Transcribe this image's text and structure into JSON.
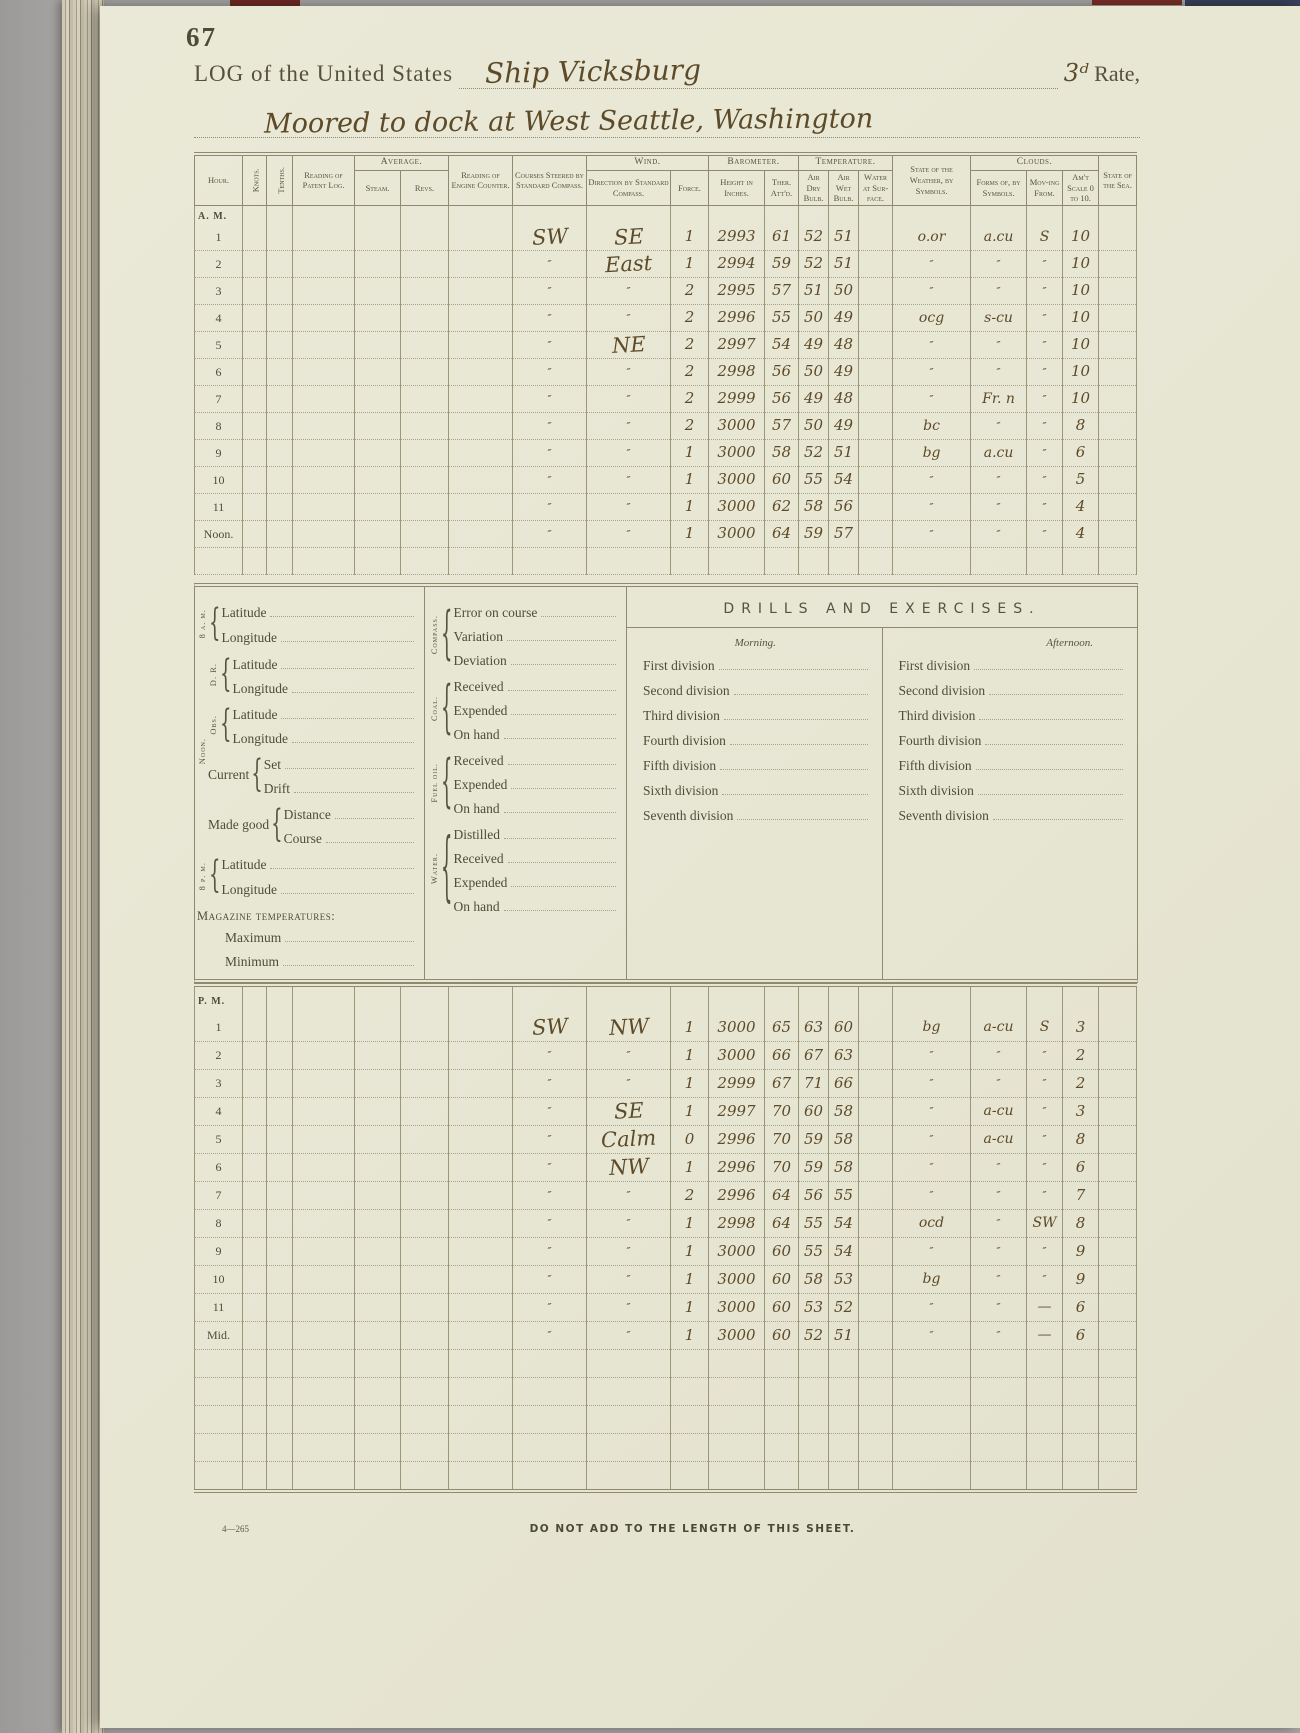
{
  "page": {
    "number": "67",
    "title_printed": "LOG of the United States",
    "ship_name": "Ship Vicksburg",
    "rate_hw": "3ᵈ",
    "rate_printed": " Rate,",
    "location_line": "Moored to dock at West Seattle, Washington",
    "footer_left": "4—265",
    "footer_center": "DO NOT ADD TO THE LENGTH OF THIS SHEET."
  },
  "headers": {
    "hour": "Hour.",
    "knots": "Knots.",
    "tenths": "Tenths.",
    "patent": "Reading of Patent Log.",
    "average": "Average.",
    "steam": "Steam.",
    "revs": "Revs.",
    "counter": "Reading of Engine Counter.",
    "courses": "Courses Steered by Standard Compass.",
    "wind": "Wind.",
    "direction": "Direction by Standard Compass.",
    "force": "Force.",
    "barometer": "Barometer.",
    "height": "Height in Inches.",
    "ther": "Ther. Att'd.",
    "temperature": "Temperature.",
    "dry": "Air Dry Bulb.",
    "wet": "Air Wet Bulb.",
    "water": "Water at Sur-face.",
    "weather": "State of the Weather, by Symbols.",
    "clouds": "Clouds.",
    "forms": "Forms of, by Symbols.",
    "moving": "Mov-ing From.",
    "amount": "Am't Scale 0 to 10.",
    "sea": "State of the Sea."
  },
  "table_labels": {
    "am": "A. M.",
    "pm": "P. M."
  },
  "am_rows": [
    {
      "hour": "1",
      "course": "SW",
      "dir": "SE",
      "force": "1",
      "bar": "2993",
      "ther": "61",
      "dry": "52",
      "wet": "51",
      "weather": "o.or",
      "forms": "a.cu",
      "from": "S",
      "amt": "10"
    },
    {
      "hour": "2",
      "course": "″",
      "dir": "East",
      "force": "1",
      "bar": "2994",
      "ther": "59",
      "dry": "52",
      "wet": "51",
      "weather": "″",
      "forms": "″",
      "from": "″",
      "amt": "10"
    },
    {
      "hour": "3",
      "course": "″",
      "dir": "″",
      "force": "2",
      "bar": "2995",
      "ther": "57",
      "dry": "51",
      "wet": "50",
      "weather": "″",
      "forms": "″",
      "from": "″",
      "amt": "10"
    },
    {
      "hour": "4",
      "course": "″",
      "dir": "″",
      "force": "2",
      "bar": "2996",
      "ther": "55",
      "dry": "50",
      "wet": "49",
      "weather": "ocg",
      "forms": "s-cu",
      "from": "″",
      "amt": "10"
    },
    {
      "hour": "5",
      "course": "″",
      "dir": "NE",
      "force": "2",
      "bar": "2997",
      "ther": "54",
      "dry": "49",
      "wet": "48",
      "weather": "″",
      "forms": "″",
      "from": "″",
      "amt": "10"
    },
    {
      "hour": "6",
      "course": "″",
      "dir": "″",
      "force": "2",
      "bar": "2998",
      "ther": "56",
      "dry": "50",
      "wet": "49",
      "weather": "″",
      "forms": "″",
      "from": "″",
      "amt": "10"
    },
    {
      "hour": "7",
      "course": "″",
      "dir": "″",
      "force": "2",
      "bar": "2999",
      "ther": "56",
      "dry": "49",
      "wet": "48",
      "weather": "″",
      "forms": "Fr. n",
      "from": "″",
      "amt": "10"
    },
    {
      "hour": "8",
      "course": "″",
      "dir": "″",
      "force": "2",
      "bar": "3000",
      "ther": "57",
      "dry": "50",
      "wet": "49",
      "weather": "bc",
      "forms": "″",
      "from": "″",
      "amt": "8"
    },
    {
      "hour": "9",
      "course": "″",
      "dir": "″",
      "force": "1",
      "bar": "3000",
      "ther": "58",
      "dry": "52",
      "wet": "51",
      "weather": "bg",
      "forms": "a.cu",
      "from": "″",
      "amt": "6"
    },
    {
      "hour": "10",
      "course": "″",
      "dir": "″",
      "force": "1",
      "bar": "3000",
      "ther": "60",
      "dry": "55",
      "wet": "54",
      "weather": "″",
      "forms": "″",
      "from": "″",
      "amt": "5"
    },
    {
      "hour": "11",
      "course": "″",
      "dir": "″",
      "force": "1",
      "bar": "3000",
      "ther": "62",
      "dry": "58",
      "wet": "56",
      "weather": "″",
      "forms": "″",
      "from": "″",
      "amt": "4"
    },
    {
      "hour": "Noon.",
      "course": "″",
      "dir": "″",
      "force": "1",
      "bar": "3000",
      "ther": "64",
      "dry": "59",
      "wet": "57",
      "weather": "″",
      "forms": "″",
      "from": "″",
      "amt": "4"
    }
  ],
  "pm_rows": [
    {
      "hour": "1",
      "course": "SW",
      "dir": "NW",
      "force": "1",
      "bar": "3000",
      "ther": "65",
      "dry": "63",
      "wet": "60",
      "weather": "bg",
      "forms": "a-cu",
      "from": "S",
      "amt": "3"
    },
    {
      "hour": "2",
      "course": "″",
      "dir": "″",
      "force": "1",
      "bar": "3000",
      "ther": "66",
      "dry": "67",
      "wet": "63",
      "weather": "″",
      "forms": "″",
      "from": "″",
      "amt": "2"
    },
    {
      "hour": "3",
      "course": "″",
      "dir": "″",
      "force": "1",
      "bar": "2999",
      "ther": "67",
      "dry": "71",
      "wet": "66",
      "weather": "″",
      "forms": "″",
      "from": "″",
      "amt": "2"
    },
    {
      "hour": "4",
      "course": "″",
      "dir": "SE",
      "force": "1",
      "bar": "2997",
      "ther": "70",
      "dry": "60",
      "wet": "58",
      "weather": "″",
      "forms": "a-cu",
      "from": "″",
      "amt": "3"
    },
    {
      "hour": "5",
      "course": "″",
      "dir": "Calm",
      "force": "0",
      "bar": "2996",
      "ther": "70",
      "dry": "59",
      "wet": "58",
      "weather": "″",
      "forms": "a-cu",
      "from": "″",
      "amt": "8"
    },
    {
      "hour": "6",
      "course": "″",
      "dir": "NW",
      "force": "1",
      "bar": "2996",
      "ther": "70",
      "dry": "59",
      "wet": "58",
      "weather": "″",
      "forms": "″",
      "from": "″",
      "amt": "6"
    },
    {
      "hour": "7",
      "course": "″",
      "dir": "″",
      "force": "2",
      "bar": "2996",
      "ther": "64",
      "dry": "56",
      "wet": "55",
      "weather": "″",
      "forms": "″",
      "from": "″",
      "amt": "7"
    },
    {
      "hour": "8",
      "course": "″",
      "dir": "″",
      "force": "1",
      "bar": "2998",
      "ther": "64",
      "dry": "55",
      "wet": "54",
      "weather": "ocd",
      "forms": "″",
      "from": "SW",
      "amt": "8"
    },
    {
      "hour": "9",
      "course": "″",
      "dir": "″",
      "force": "1",
      "bar": "3000",
      "ther": "60",
      "dry": "55",
      "wet": "54",
      "weather": "″",
      "forms": "″",
      "from": "″",
      "amt": "9"
    },
    {
      "hour": "10",
      "course": "″",
      "dir": "″",
      "force": "1",
      "bar": "3000",
      "ther": "60",
      "dry": "58",
      "wet": "53",
      "weather": "bg",
      "forms": "″",
      "from": "″",
      "amt": "9"
    },
    {
      "hour": "11",
      "course": "″",
      "dir": "″",
      "force": "1",
      "bar": "3000",
      "ther": "60",
      "dry": "53",
      "wet": "52",
      "weather": "″",
      "forms": "″",
      "from": "—",
      "amt": "6"
    },
    {
      "hour": "Mid.",
      "course": "″",
      "dir": "″",
      "force": "1",
      "bar": "3000",
      "ther": "60",
      "dry": "52",
      "wet": "51",
      "weather": "″",
      "forms": "″",
      "from": "—",
      "amt": "6"
    }
  ],
  "position": {
    "noon_label": "Noon.",
    "groups": [
      {
        "side": "8 a. m.",
        "items": [
          "Latitude",
          "Longitude"
        ],
        "noon": false
      },
      {
        "side": "D. R.",
        "items": [
          "Latitude",
          "Longitude"
        ],
        "noon": true
      },
      {
        "side": "Obs.",
        "items": [
          "Latitude",
          "Longitude"
        ],
        "noon": true
      },
      {
        "inline": "Current",
        "items": [
          "Set",
          "Drift"
        ],
        "noon": true
      },
      {
        "inline": "Made good",
        "items": [
          "Distance",
          "Course"
        ],
        "noon": true
      },
      {
        "side": "8 p. m.",
        "items": [
          "Latitude",
          "Longitude"
        ],
        "noon": false
      }
    ],
    "magazine_title": "Magazine temperatures:",
    "magazine_items": [
      "Maximum",
      "Minimum"
    ]
  },
  "supplies": {
    "groups": [
      {
        "side": "Compass.",
        "items": [
          "Error on course",
          "Variation",
          "Deviation"
        ]
      },
      {
        "side": "Coal.",
        "items": [
          "Received",
          "Expended",
          "On hand"
        ]
      },
      {
        "side": "Fuel oil.",
        "items": [
          "Received",
          "Expended",
          "On hand"
        ]
      },
      {
        "side": "Water.",
        "items": [
          "Distilled",
          "Received",
          "Expended",
          "On hand"
        ]
      }
    ]
  },
  "drills": {
    "title": "DRILLS AND EXERCISES.",
    "morning": "Morning.",
    "afternoon": "Afternoon.",
    "divisions": [
      "First division",
      "Second division",
      "Third division",
      "Fourth division",
      "Fifth division",
      "Sixth division",
      "Seventh division"
    ]
  }
}
